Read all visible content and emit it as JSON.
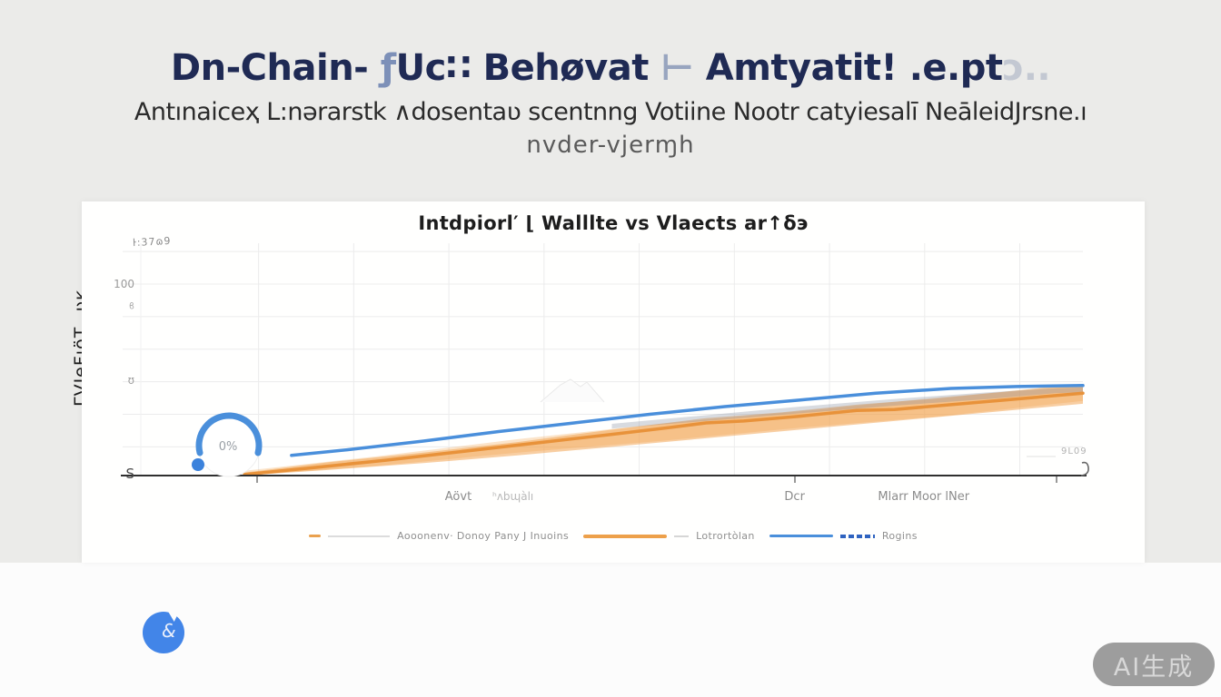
{
  "page": {
    "background": "#ebebe9",
    "watermark": "AI生成"
  },
  "header": {
    "title_seg1": "Dn-Chain- ",
    "title_seg2": "ƒ",
    "title_seg3": "Uc∷ Behøvat ",
    "title_seg4": "⊢ ",
    "title_seg5": "Amtyatit! .e.pt",
    "title_seg6": "ɔ..",
    "subtitle": "Antınaiceҳ L:nərarstk ∧dosentaʋ scentnng Votiine Nootr catyiesalī NeāleidJrsne.ı",
    "subtitle_line2": "nvder-vjerɱh"
  },
  "side_label": "ΓVJeFıöT‿ʋĸ",
  "footer_icon": {
    "glyph": "&"
  },
  "colors": {
    "accent_blue": "#4a8fdb",
    "accent_orange": "#eda04a",
    "title_navy": "#1f2a54",
    "badge_blue": "#4285e8"
  },
  "chart": {
    "legend": [
      {
        "label": "Aooonenv·  Donoy Pany J Inuoins",
        "marker": "orange-dash"
      },
      {
        "label": "Lotrortòlan",
        "marker": "orange-line"
      },
      {
        "label": "Rogins",
        "marker": "blue-line"
      }
    ]
  },
  "chart_data": {
    "type": "line",
    "title": "Intdpiorl′ ⌊ Walllte vs Vlaects ar↑δэ",
    "annotation_top_left": "ŀ:37ɷ9",
    "annotation_right": "9L09",
    "gauge": {
      "label": "0%",
      "value": 0
    },
    "ylim": [
      0,
      120
    ],
    "grid": {
      "vertical_fractions": [
        0.125,
        0.226,
        0.327,
        0.428,
        0.529,
        0.63,
        0.731,
        0.832,
        0.933
      ],
      "horizontal_values": [
        117,
        100,
        83,
        66,
        49,
        32,
        15
      ]
    },
    "y_axis": {
      "ticks": [
        {
          "label": "100",
          "value": 100
        },
        {
          "label": "ϐ",
          "value": 88
        },
        {
          "label": "ʊ",
          "value": 50
        },
        {
          "label": "S",
          "value": 1
        }
      ]
    },
    "x_axis": {
      "labels": [
        {
          "text": "Aövt",
          "pos": 0.337,
          "muted": false
        },
        {
          "text": "ʰʌbɰàlı",
          "pos": 0.395,
          "muted": true
        },
        {
          "text": "Dcr",
          "pos": 0.694,
          "muted": false
        },
        {
          "text": "Mlarr Moor lNer",
          "pos": 0.831,
          "muted": false
        }
      ]
    },
    "series": [
      {
        "name": "band-light",
        "type": "area",
        "color": "rgba(242,158,70,0.28)",
        "upper": [
          [
            0.11,
            2.5
          ],
          [
            0.25,
            10
          ],
          [
            0.4,
            19
          ],
          [
            0.55,
            27
          ],
          [
            0.7,
            33.5
          ],
          [
            0.85,
            41
          ],
          [
            1.0,
            47
          ]
        ],
        "lower": [
          [
            0.11,
            0
          ],
          [
            0.25,
            5
          ],
          [
            0.4,
            12
          ],
          [
            0.55,
            18
          ],
          [
            0.7,
            25
          ],
          [
            0.85,
            31
          ],
          [
            1.0,
            39
          ]
        ]
      },
      {
        "name": "band-main",
        "type": "area",
        "color": "rgba(242,158,70,0.5)",
        "upper": [
          [
            0.11,
            1.5
          ],
          [
            0.2,
            7
          ],
          [
            0.3,
            12
          ],
          [
            0.4,
            17.5
          ],
          [
            0.5,
            24
          ],
          [
            0.6,
            30
          ],
          [
            0.68,
            33
          ],
          [
            0.76,
            37
          ],
          [
            0.84,
            40
          ],
          [
            0.92,
            44
          ],
          [
            0.96,
            46
          ],
          [
            1.0,
            46.5
          ]
        ],
        "lower": [
          [
            0.11,
            0
          ],
          [
            0.2,
            3
          ],
          [
            0.3,
            6.5
          ],
          [
            0.4,
            10.5
          ],
          [
            0.5,
            15
          ],
          [
            0.6,
            19.5
          ],
          [
            0.7,
            24
          ],
          [
            0.8,
            28.5
          ],
          [
            0.9,
            33
          ],
          [
            1.0,
            37.5
          ]
        ]
      },
      {
        "name": "band-gray",
        "type": "area",
        "color": "rgba(125,135,155,0.30)",
        "upper": [
          [
            0.5,
            27
          ],
          [
            0.6,
            31.5
          ],
          [
            0.7,
            36
          ],
          [
            0.8,
            40
          ],
          [
            0.9,
            43.5
          ],
          [
            0.97,
            45.5
          ],
          [
            1.0,
            46
          ]
        ],
        "lower": [
          [
            0.5,
            24.5
          ],
          [
            0.6,
            28.5
          ],
          [
            0.7,
            32.5
          ],
          [
            0.8,
            36.5
          ],
          [
            0.9,
            40
          ],
          [
            0.97,
            43
          ],
          [
            1.0,
            43.5
          ]
        ]
      },
      {
        "name": "Lotrortòlan",
        "type": "line",
        "color": "#e8923a",
        "points": [
          [
            0.11,
            0.5
          ],
          [
            0.18,
            4
          ],
          [
            0.26,
            8
          ],
          [
            0.34,
            12.5
          ],
          [
            0.42,
            17
          ],
          [
            0.5,
            21.5
          ],
          [
            0.56,
            25
          ],
          [
            0.6,
            27.5
          ],
          [
            0.64,
            28.5
          ],
          [
            0.7,
            31
          ],
          [
            0.76,
            34
          ],
          [
            0.8,
            34.5
          ],
          [
            0.86,
            37
          ],
          [
            0.93,
            40
          ],
          [
            1.0,
            43
          ]
        ]
      },
      {
        "name": "Rogins",
        "type": "line",
        "color": "#4a8fdb",
        "points": [
          [
            0.16,
            10.5
          ],
          [
            0.22,
            13.5
          ],
          [
            0.3,
            18
          ],
          [
            0.38,
            23
          ],
          [
            0.46,
            27.5
          ],
          [
            0.54,
            32
          ],
          [
            0.62,
            36
          ],
          [
            0.7,
            39.5
          ],
          [
            0.78,
            43
          ],
          [
            0.86,
            45.5
          ],
          [
            0.93,
            46.5
          ],
          [
            1.0,
            47
          ]
        ]
      }
    ]
  }
}
